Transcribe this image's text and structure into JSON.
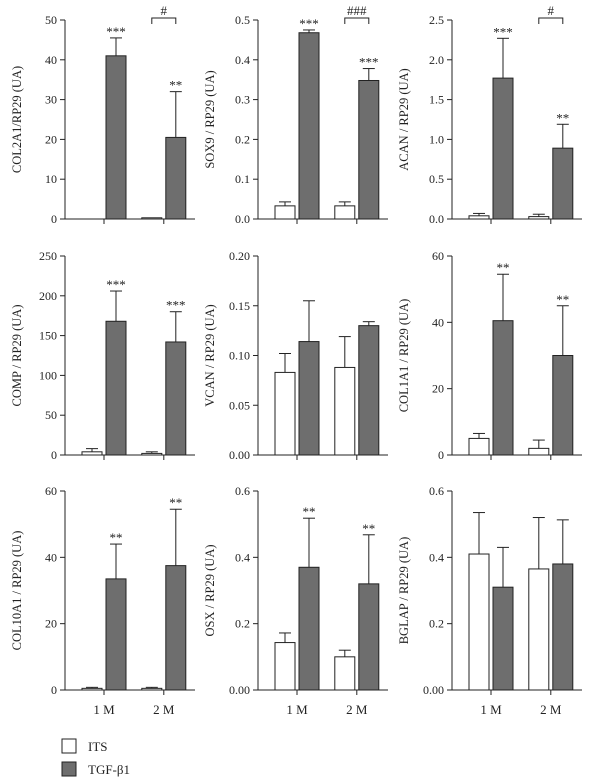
{
  "legend": {
    "entries": [
      {
        "label": "ITS",
        "color": "#ffffff"
      },
      {
        "label": "TGF-β1",
        "color": "#6e6e6e"
      }
    ]
  },
  "chart_data": [
    {
      "type": "bar",
      "categories": [
        "",
        ""
      ],
      "ylabel": "COL2A1/RP29 (UA)",
      "ylim": [
        0,
        50
      ],
      "yticks": [
        "0",
        "10",
        "20",
        "30",
        "40",
        "50"
      ],
      "series": [
        {
          "values": [
            0.0,
            0.3
          ],
          "errors": [
            0,
            0
          ]
        },
        {
          "values": [
            41,
            20.5
          ],
          "errors": [
            4.5,
            11.5
          ]
        }
      ],
      "sig": [
        "",
        "",
        "***",
        "**"
      ],
      "bracket": {
        "label": "#",
        "from": 1,
        "to": 3
      }
    },
    {
      "type": "bar",
      "categories": [
        "",
        ""
      ],
      "ylabel": "SOX9 / RP29 (UA)",
      "ylim": [
        0,
        0.5
      ],
      "yticks": [
        "0.0",
        "0.1",
        "0.2",
        "0.3",
        "0.4",
        "0.5"
      ],
      "series": [
        {
          "values": [
            0.033,
            0.033
          ],
          "errors": [
            0.01,
            0.01
          ]
        },
        {
          "values": [
            0.468,
            0.348
          ],
          "errors": [
            0.007,
            0.03
          ]
        }
      ],
      "sig": [
        "",
        "",
        "***",
        "***"
      ],
      "bracket": {
        "label": "###",
        "from": 1,
        "to": 3
      }
    },
    {
      "type": "bar",
      "categories": [
        "",
        ""
      ],
      "ylabel": "ACAN / RP29 (UA)",
      "ylim": [
        0,
        2.5
      ],
      "yticks": [
        "0.0",
        "0.5",
        "1.0",
        "1.5",
        "2.0",
        "2.5"
      ],
      "series": [
        {
          "values": [
            0.04,
            0.03
          ],
          "errors": [
            0.03,
            0.03
          ]
        },
        {
          "values": [
            1.77,
            0.89
          ],
          "errors": [
            0.5,
            0.3
          ]
        }
      ],
      "sig": [
        "",
        "",
        "***",
        "**"
      ],
      "bracket": {
        "label": "#",
        "from": 1,
        "to": 3
      }
    },
    {
      "type": "bar",
      "categories": [
        "",
        ""
      ],
      "ylabel": "COMP / RP29 (UA)",
      "ylim": [
        0,
        250
      ],
      "yticks": [
        "0",
        "50",
        "100",
        "150",
        "200",
        "250"
      ],
      "series": [
        {
          "values": [
            4,
            2
          ],
          "errors": [
            4,
            2
          ]
        },
        {
          "values": [
            168,
            142
          ],
          "errors": [
            38,
            38
          ]
        }
      ],
      "sig": [
        "",
        "",
        "***",
        "***"
      ]
    },
    {
      "type": "bar",
      "categories": [
        "",
        ""
      ],
      "ylabel": "VCAN / RP29 (UA)",
      "ylim": [
        0,
        0.2
      ],
      "yticks": [
        "0.00",
        "0.05",
        "0.10",
        "0.15",
        "0.20"
      ],
      "series": [
        {
          "values": [
            0.083,
            0.088
          ],
          "errors": [
            0.019,
            0.031
          ]
        },
        {
          "values": [
            0.114,
            0.13
          ],
          "errors": [
            0.041,
            0.004
          ]
        }
      ],
      "sig": [
        "",
        "",
        "",
        ""
      ]
    },
    {
      "type": "bar",
      "categories": [
        "",
        ""
      ],
      "ylabel": "COL1A1 / RP29 (UA)",
      "ylim": [
        0,
        60
      ],
      "yticks": [
        "0",
        "20",
        "40",
        "60"
      ],
      "series": [
        {
          "values": [
            5,
            2
          ],
          "errors": [
            1.5,
            2.5
          ]
        },
        {
          "values": [
            40.5,
            30
          ],
          "errors": [
            14,
            15
          ]
        }
      ],
      "sig": [
        "",
        "",
        "**",
        "**"
      ]
    },
    {
      "type": "bar",
      "categories": [
        "1 M",
        "2 M"
      ],
      "ylabel": "COL10A1 / RP29 (UA)",
      "ylim": [
        0,
        60
      ],
      "yticks": [
        "0",
        "20",
        "40",
        "60"
      ],
      "series": [
        {
          "values": [
            0.5,
            0.5
          ],
          "errors": [
            0.3,
            0.3
          ]
        },
        {
          "values": [
            33.5,
            37.5
          ],
          "errors": [
            10.5,
            17
          ]
        }
      ],
      "sig": [
        "",
        "",
        "**",
        "**"
      ]
    },
    {
      "type": "bar",
      "categories": [
        "1 M",
        "2 M"
      ],
      "ylabel": "OSX / RP29 (UA)",
      "ylim": [
        0,
        0.6
      ],
      "yticks": [
        "0.00",
        "0.2",
        "0.4",
        "0.6"
      ],
      "series": [
        {
          "values": [
            0.143,
            0.1
          ],
          "errors": [
            0.029,
            0.02
          ]
        },
        {
          "values": [
            0.37,
            0.32
          ],
          "errors": [
            0.148,
            0.148
          ]
        }
      ],
      "sig": [
        "",
        "",
        "**",
        "**"
      ]
    },
    {
      "type": "bar",
      "categories": [
        "1 M",
        "2 M"
      ],
      "ylabel": "BGLAP / RP29 (UA)",
      "ylim": [
        0,
        0.6
      ],
      "yticks": [
        "0.00",
        "0.2",
        "0.4",
        "0.6"
      ],
      "series": [
        {
          "values": [
            0.41,
            0.365
          ],
          "errors": [
            0.125,
            0.155
          ]
        },
        {
          "values": [
            0.31,
            0.38
          ],
          "errors": [
            0.12,
            0.133
          ]
        }
      ],
      "sig": [
        "",
        "",
        "",
        ""
      ]
    }
  ]
}
